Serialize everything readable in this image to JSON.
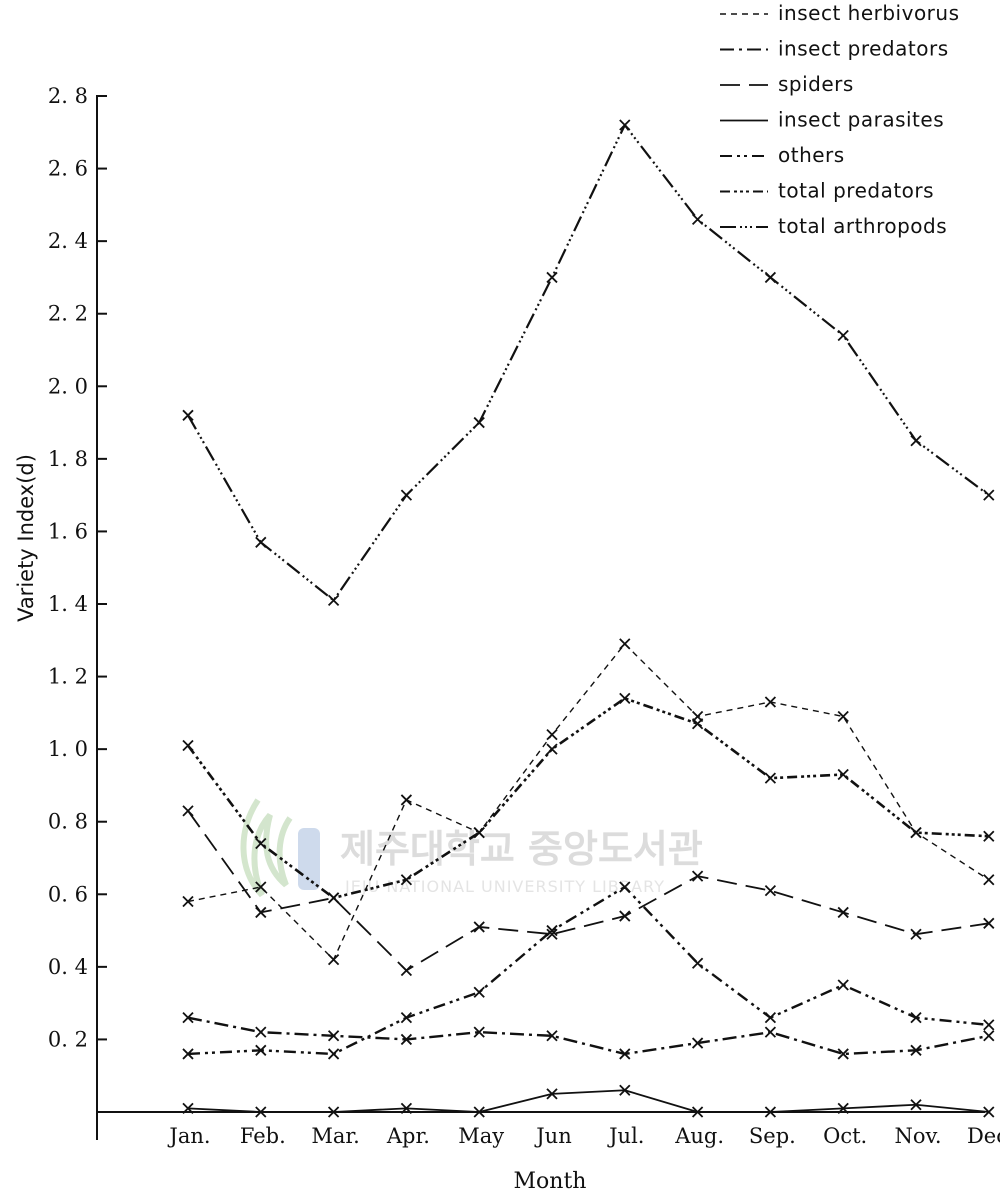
{
  "chart_data": {
    "type": "line",
    "xlabel": "Month",
    "ylabel": "Variety Index(d)",
    "categories": [
      "Jan.",
      "Feb.",
      "Mar.",
      "Apr.",
      "May",
      "Jun",
      "Jul.",
      "Aug.",
      "Sep.",
      "Oct.",
      "Nov.",
      "Dec."
    ],
    "ylim": [
      0,
      2.8
    ],
    "yticks": [
      "0. 2",
      "0. 4",
      "0. 6",
      "0. 8",
      "1. 0",
      "1. 2",
      "1. 4",
      "1. 6",
      "1. 8",
      "2. 0",
      "2. 2",
      "2. 4",
      "2. 6",
      "2. 8"
    ],
    "grid": false,
    "legend_position": "top-right",
    "series": [
      {
        "name": "insect herbivorus",
        "dash": "short-dash",
        "values": [
          0.58,
          0.62,
          0.42,
          0.86,
          0.77,
          1.04,
          1.29,
          1.09,
          1.13,
          1.09,
          0.77,
          0.64
        ]
      },
      {
        "name": "insect predators",
        "dash": "dash-dot",
        "values": [
          0.26,
          0.22,
          0.21,
          0.2,
          0.22,
          0.21,
          0.16,
          0.19,
          0.22,
          0.16,
          0.17,
          0.21
        ]
      },
      {
        "name": "spiders",
        "dash": "long-dash",
        "values": [
          0.83,
          0.55,
          0.59,
          0.39,
          0.51,
          0.49,
          0.54,
          0.65,
          0.61,
          0.55,
          0.49,
          0.52
        ]
      },
      {
        "name": "insect parasites",
        "dash": "solid",
        "values": [
          0.01,
          0.0,
          0.0,
          0.01,
          0.0,
          0.05,
          0.06,
          0.0,
          0.0,
          0.01,
          0.02,
          0.0
        ]
      },
      {
        "name": "others",
        "dash": "dash-dot-dot",
        "values": [
          0.16,
          0.17,
          0.16,
          0.26,
          0.33,
          0.5,
          0.62,
          0.41,
          0.26,
          0.35,
          0.26,
          0.24
        ]
      },
      {
        "name": "total predators",
        "dash": "dash-dot-dot-dot",
        "values": [
          1.01,
          0.74,
          0.59,
          0.64,
          0.77,
          1.0,
          1.14,
          1.07,
          0.92,
          0.93,
          0.77,
          0.76
        ]
      },
      {
        "name": "total arthropods",
        "dash": "dash-dots",
        "values": [
          1.92,
          1.57,
          1.41,
          1.7,
          1.9,
          2.3,
          2.72,
          2.46,
          2.3,
          2.14,
          1.85,
          1.7
        ]
      }
    ]
  },
  "watermark": {
    "korean": "제주대학교 중앙도서관",
    "english": "JEJU NATIONAL UNIVERSITY LIBRARY"
  }
}
